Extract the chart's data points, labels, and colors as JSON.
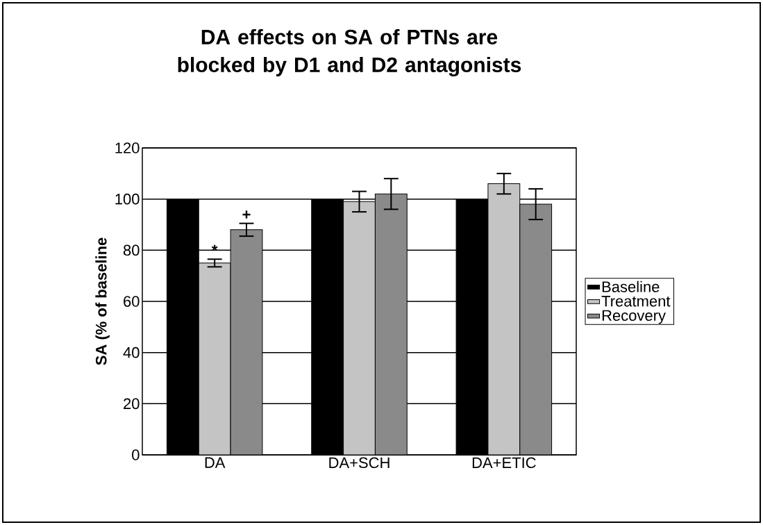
{
  "chart_data": {
    "type": "bar",
    "title": "DA effects on SA of PTNs are blocked by D1 and D2 antagonists",
    "ylabel": "SA (% of baseline",
    "categories": [
      "DA",
      "DA+SCH",
      "DA+ETIC"
    ],
    "series": [
      {
        "name": "Baseline",
        "color": "#000000",
        "values": [
          100,
          100,
          100
        ]
      },
      {
        "name": "Treatment",
        "color": "#c4c4c4",
        "values": [
          75,
          99,
          106
        ],
        "errors": [
          1.5,
          4,
          4
        ]
      },
      {
        "name": "Recovery",
        "color": "#8a8a8a",
        "values": [
          88,
          102,
          98
        ],
        "errors": [
          2.5,
          6,
          6
        ]
      }
    ],
    "ylim": [
      0,
      120
    ],
    "yticks": [
      0,
      20,
      40,
      60,
      80,
      100,
      120
    ],
    "grid": "y",
    "legend": "right",
    "annotations": [
      "*",
      "+"
    ]
  }
}
